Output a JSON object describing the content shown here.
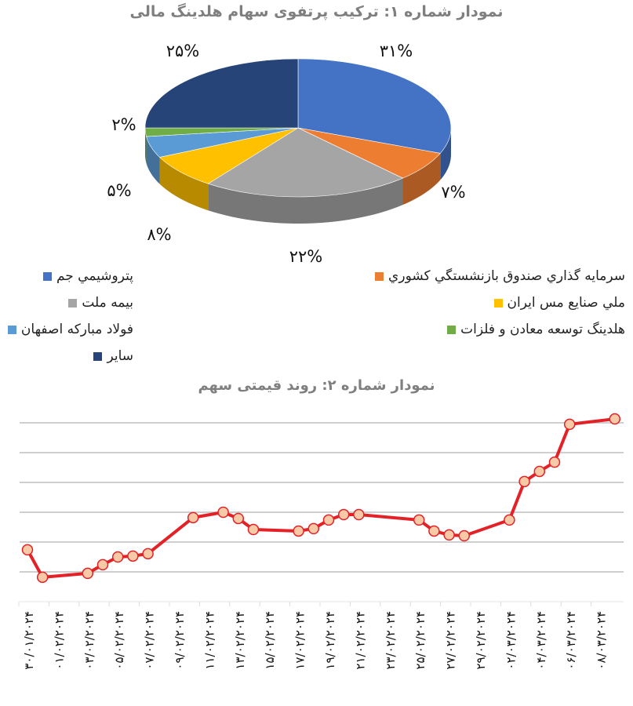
{
  "chart_data": [
    {
      "type": "pie",
      "title": "نمودار شماره ۱: ترکیب پرتفوی سهام هلدینگ مالی",
      "three_d": true,
      "legend_placement": "bottom",
      "slices": [
        {
          "name": "پتروشيمي جم",
          "value": 31,
          "label": "۳۱%",
          "color": "#4472c4"
        },
        {
          "name": "سرمايه گذاري صندوق بازنشستگي کشوري",
          "value": 7,
          "label": "۷%",
          "color": "#ed7d31"
        },
        {
          "name": "بيمه ملت",
          "value": 22,
          "label": "۲۲%",
          "color": "#a5a5a5"
        },
        {
          "name": "ملي صنايع مس ايران",
          "value": 8,
          "label": "۸%",
          "color": "#ffc000"
        },
        {
          "name": "فولاد مبارکه اصفهان",
          "value": 5,
          "label": "۵%",
          "color": "#5b9bd5"
        },
        {
          "name": "هلدينگ توسعه معادن و فلزات",
          "value": 2,
          "label": "۲%",
          "color": "#70ad47"
        },
        {
          "name": "ساير",
          "value": 25,
          "label": "۲۵%",
          "color": "#264478"
        }
      ]
    },
    {
      "type": "line",
      "title": "نمودار شماره ۲: روند قیمتی سهم",
      "grid": true,
      "y_axis_labels_shown": false,
      "ylim": [
        0,
        6.5
      ],
      "series_color": "#e32227",
      "marker_color": "#f8c9a6",
      "tick_labels": [
        "۳۰/۰۱/۲۰۲۴",
        "۰۱/۰۲/۲۰۲۴",
        "۰۳/۰۲/۲۰۲۴",
        "۰۵/۰۲/۲۰۲۴",
        "۰۷/۰۲/۲۰۲۴",
        "۰۹/۰۲/۲۰۲۴",
        "۱۱/۰۲/۲۰۲۴",
        "۱۳/۰۲/۲۰۲۴",
        "۱۵/۰۲/۲۰۲۴",
        "۱۷/۰۲/۲۰۲۴",
        "۱۹/۰۲/۲۰۲۴",
        "۲۱/۰۲/۲۰۲۴",
        "۲۳/۰۲/۲۰۲۴",
        "۲۵/۰۲/۲۰۲۴",
        "۲۷/۰۲/۲۰۲۴",
        "۲۹/۰۲/۲۰۲۴",
        "۰۲/۰۳/۲۰۲۴",
        "۰۴/۰۳/۲۰۲۴",
        "۰۶/۰۳/۲۰۲۴",
        "۰۸/۰۳/۲۰۲۴"
      ],
      "x": [
        "2024-01-30",
        "2024-01-31",
        "2024-02-03",
        "2024-02-04",
        "2024-02-05",
        "2024-02-06",
        "2024-02-07",
        "2024-02-10",
        "2024-02-12",
        "2024-02-13",
        "2024-02-14",
        "2024-02-17",
        "2024-02-18",
        "2024-02-19",
        "2024-02-20",
        "2024-02-21",
        "2024-02-25",
        "2024-02-26",
        "2024-02-27",
        "2024-02-28",
        "2024-03-02",
        "2024-03-03",
        "2024-03-04",
        "2024-03-05",
        "2024-03-06",
        "2024-03-09"
      ],
      "y": [
        1.74,
        0.82,
        0.95,
        1.24,
        1.5,
        1.53,
        1.61,
        2.82,
        3.0,
        2.79,
        2.42,
        2.37,
        2.45,
        2.74,
        2.92,
        2.92,
        2.74,
        2.37,
        2.24,
        2.21,
        2.74,
        4.03,
        4.37,
        4.68,
        5.95,
        6.13
      ]
    }
  ]
}
